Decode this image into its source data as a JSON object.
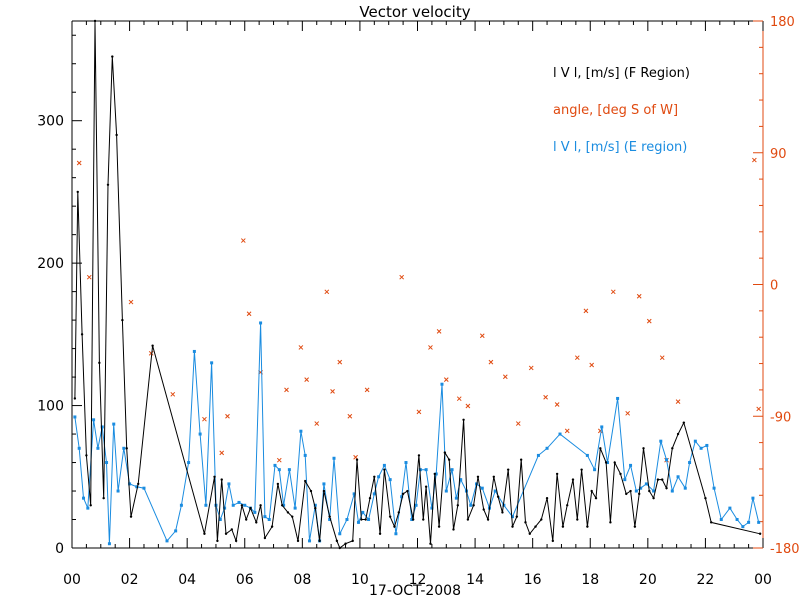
{
  "chart_data": {
    "type": "line",
    "title": "Vector velocity",
    "xlabel": "17-OCT-2008",
    "x_tick_labels": [
      "00",
      "02",
      "04",
      "06",
      "08",
      "10",
      "12",
      "14",
      "16",
      "18",
      "20",
      "22",
      "00"
    ],
    "x_range": [
      0,
      24
    ],
    "y_left_range": [
      0,
      370
    ],
    "y_left_ticks": [
      "0",
      "100",
      "200",
      "300"
    ],
    "y_right_range": [
      -180,
      180
    ],
    "y_right_ticks": [
      "-180",
      "-90",
      "0",
      "90",
      "180"
    ],
    "legend": [
      {
        "label": "l V l, [m/s] (F Region)",
        "color": "#000000"
      },
      {
        "label": "angle, [deg S of W]",
        "color": "#e04a10"
      },
      {
        "label": "l V l, [m/s] (E region)",
        "color": "#1a8ce0"
      }
    ],
    "series": [
      {
        "name": "l V l, [m/s] (F Region)",
        "color": "#000000",
        "marker": "dot",
        "x": [
          0.1,
          0.2,
          0.35,
          0.5,
          0.65,
          0.8,
          0.95,
          1.1,
          1.25,
          1.4,
          1.55,
          1.75,
          1.9,
          2.05,
          2.3,
          2.8,
          4.6,
          4.95,
          5.05,
          5.2,
          5.35,
          5.55,
          5.7,
          5.9,
          6.05,
          6.2,
          6.4,
          6.55,
          6.7,
          6.95,
          7.15,
          7.3,
          7.5,
          7.65,
          7.85,
          8.1,
          8.3,
          8.45,
          8.6,
          8.75,
          8.95,
          9.2,
          9.3,
          9.5,
          9.75,
          9.9,
          10.05,
          10.2,
          10.35,
          10.5,
          10.7,
          10.85,
          11.05,
          11.2,
          11.35,
          11.5,
          11.65,
          11.85,
          12.05,
          12.2,
          12.3,
          12.45,
          12.6,
          12.75,
          12.95,
          13.1,
          13.25,
          13.4,
          13.6,
          13.75,
          13.95,
          14.1,
          14.3,
          14.45,
          14.65,
          14.8,
          14.95,
          15.15,
          15.3,
          15.45,
          15.6,
          15.75,
          15.9,
          16.1,
          16.3,
          16.5,
          16.7,
          16.85,
          17.05,
          17.2,
          17.4,
          17.55,
          17.7,
          17.9,
          18.05,
          18.2,
          18.35,
          18.55,
          18.7,
          18.85,
          19.05,
          19.25,
          19.4,
          19.55,
          19.7,
          19.85,
          20.05,
          20.2,
          20.35,
          20.5,
          20.65,
          20.85,
          21.05,
          21.25,
          22.0,
          22.2,
          23.9
        ],
        "values": [
          105,
          250,
          150,
          65,
          30,
          370,
          130,
          35,
          255,
          345,
          290,
          160,
          70,
          22,
          45,
          142,
          10,
          50,
          5,
          48,
          10,
          13,
          5,
          30,
          20,
          28,
          18,
          30,
          7,
          15,
          45,
          30,
          25,
          22,
          5,
          47,
          40,
          28,
          5,
          40,
          22,
          5,
          0,
          3,
          5,
          62,
          20,
          20,
          35,
          50,
          10,
          55,
          22,
          15,
          25,
          38,
          40,
          20,
          65,
          20,
          43,
          3,
          52,
          15,
          67,
          62,
          13,
          30,
          90,
          20,
          30,
          50,
          27,
          20,
          50,
          36,
          25,
          55,
          15,
          22,
          62,
          18,
          10,
          15,
          20,
          35,
          5,
          52,
          15,
          30,
          48,
          20,
          55,
          15,
          40,
          35,
          70,
          60,
          18,
          60,
          52,
          38,
          40,
          15,
          38,
          70,
          40,
          35,
          48,
          48,
          42,
          70,
          80,
          88,
          35,
          18,
          10
        ]
      },
      {
        "name": "angle, [deg S of W]",
        "color": "#e04a10",
        "marker": "x",
        "x": [
          0.25,
          0.6,
          2.05,
          2.75,
          3.5,
          4.6,
          5.2,
          5.4,
          5.95,
          6.15,
          6.55,
          7.2,
          7.45,
          7.95,
          8.15,
          8.5,
          8.85,
          9.05,
          9.3,
          9.65,
          9.85,
          10.25,
          11.45,
          12.05,
          12.45,
          12.75,
          13.0,
          13.45,
          13.75,
          14.25,
          14.55,
          15.05,
          15.5,
          15.95,
          16.45,
          16.85,
          17.2,
          17.55,
          17.85,
          18.05,
          18.35,
          18.8,
          19.3,
          19.7,
          20.05,
          20.5,
          20.65,
          21.05,
          23.7,
          23.85
        ],
        "values": [
          83,
          5,
          -12,
          -47,
          -75,
          -92,
          -115,
          -90,
          30,
          -20,
          -60,
          -120,
          -72,
          -43,
          -65,
          -95,
          -5,
          -73,
          -53,
          -90,
          -118,
          -72,
          5,
          -87,
          -43,
          -32,
          -65,
          -78,
          -83,
          -35,
          -53,
          -63,
          -95,
          -57,
          -77,
          -82,
          -100,
          -50,
          -18,
          -55,
          -100,
          -5,
          -88,
          -8,
          -25,
          -50,
          -120,
          -80,
          85,
          -85
        ]
      },
      {
        "name": "l V l, [m/s] (E region)",
        "color": "#1a8ce0",
        "marker": "square",
        "x": [
          0.1,
          0.25,
          0.4,
          0.55,
          0.75,
          0.9,
          1.05,
          1.2,
          1.3,
          1.45,
          1.6,
          1.8,
          2.0,
          2.25,
          2.5,
          3.3,
          3.6,
          3.8,
          4.05,
          4.25,
          4.45,
          4.65,
          4.85,
          5.0,
          5.15,
          5.3,
          5.45,
          5.6,
          5.8,
          6.0,
          6.2,
          6.35,
          6.55,
          6.7,
          6.85,
          7.05,
          7.2,
          7.35,
          7.55,
          7.75,
          7.95,
          8.1,
          8.25,
          8.45,
          8.6,
          8.75,
          8.95,
          9.1,
          9.3,
          9.55,
          9.8,
          9.95,
          10.1,
          10.3,
          10.5,
          10.65,
          10.85,
          11.05,
          11.25,
          11.45,
          11.6,
          11.8,
          11.95,
          12.1,
          12.3,
          12.5,
          12.65,
          12.85,
          13.0,
          13.2,
          13.35,
          13.5,
          13.7,
          13.85,
          14.05,
          14.25,
          14.5,
          14.7,
          15.0,
          15.3,
          16.2,
          16.5,
          16.95,
          17.9,
          18.15,
          18.4,
          18.6,
          18.95,
          19.2,
          19.4,
          19.6,
          19.75,
          19.95,
          20.2,
          20.45,
          20.65,
          20.85,
          21.05,
          21.3,
          21.45,
          21.65,
          21.85,
          22.05,
          22.3,
          22.55,
          22.85,
          23.1,
          23.3,
          23.5,
          23.65,
          23.85
        ],
        "values": [
          92,
          70,
          35,
          28,
          90,
          70,
          85,
          60,
          3,
          87,
          40,
          70,
          45,
          43,
          42,
          5,
          12,
          30,
          60,
          138,
          80,
          30,
          130,
          30,
          20,
          28,
          45,
          30,
          32,
          30,
          28,
          25,
          158,
          22,
          20,
          58,
          55,
          30,
          55,
          28,
          82,
          65,
          5,
          30,
          5,
          45,
          20,
          63,
          10,
          20,
          38,
          18,
          25,
          20,
          38,
          50,
          58,
          48,
          10,
          36,
          60,
          20,
          30,
          55,
          55,
          28,
          52,
          115,
          40,
          55,
          35,
          48,
          40,
          30,
          45,
          42,
          28,
          40,
          30,
          22,
          65,
          70,
          80,
          65,
          55,
          85,
          60,
          105,
          48,
          58,
          40,
          42,
          45,
          40,
          75,
          62,
          40,
          50,
          42,
          60,
          75,
          70,
          72,
          42,
          20,
          28,
          20,
          15,
          18,
          35,
          18
        ]
      }
    ]
  }
}
